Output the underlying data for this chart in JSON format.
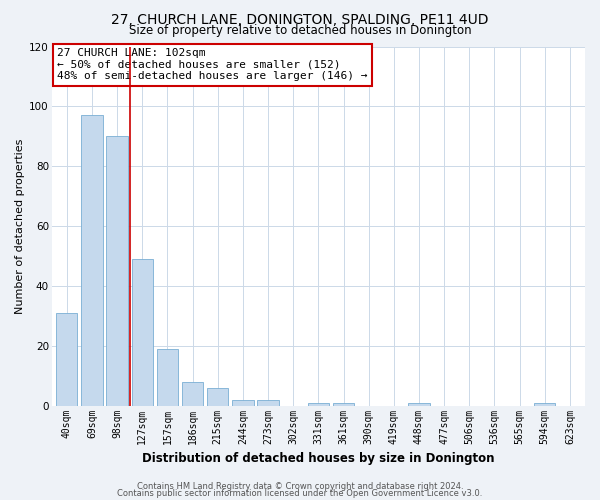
{
  "title": "27, CHURCH LANE, DONINGTON, SPALDING, PE11 4UD",
  "subtitle": "Size of property relative to detached houses in Donington",
  "xlabel": "Distribution of detached houses by size in Donington",
  "ylabel": "Number of detached properties",
  "categories": [
    "40sqm",
    "69sqm",
    "98sqm",
    "127sqm",
    "157sqm",
    "186sqm",
    "215sqm",
    "244sqm",
    "273sqm",
    "302sqm",
    "331sqm",
    "361sqm",
    "390sqm",
    "419sqm",
    "448sqm",
    "477sqm",
    "506sqm",
    "536sqm",
    "565sqm",
    "594sqm",
    "623sqm"
  ],
  "values": [
    31,
    97,
    90,
    49,
    19,
    8,
    6,
    2,
    2,
    0,
    1,
    1,
    0,
    0,
    1,
    0,
    0,
    0,
    0,
    1,
    0
  ],
  "bar_color": "#c5d9ed",
  "bar_edge_color": "#7aafd4",
  "red_line_x": 2.5,
  "ylim": [
    0,
    120
  ],
  "yticks": [
    0,
    20,
    40,
    60,
    80,
    100,
    120
  ],
  "annotation_title": "27 CHURCH LANE: 102sqm",
  "annotation_line1": "← 50% of detached houses are smaller (152)",
  "annotation_line2": "48% of semi-detached houses are larger (146) →",
  "annotation_box_color": "#ffffff",
  "annotation_box_edge": "#cc0000",
  "footer1": "Contains HM Land Registry data © Crown copyright and database right 2024.",
  "footer2": "Contains public sector information licensed under the Open Government Licence v3.0.",
  "bg_color": "#eef2f7",
  "plot_bg_color": "#ffffff",
  "grid_color": "#ccd9e8",
  "title_fontsize": 10,
  "subtitle_fontsize": 8.5,
  "ylabel_fontsize": 8,
  "xlabel_fontsize": 8.5,
  "annotation_fontsize": 8,
  "footer_fontsize": 6
}
